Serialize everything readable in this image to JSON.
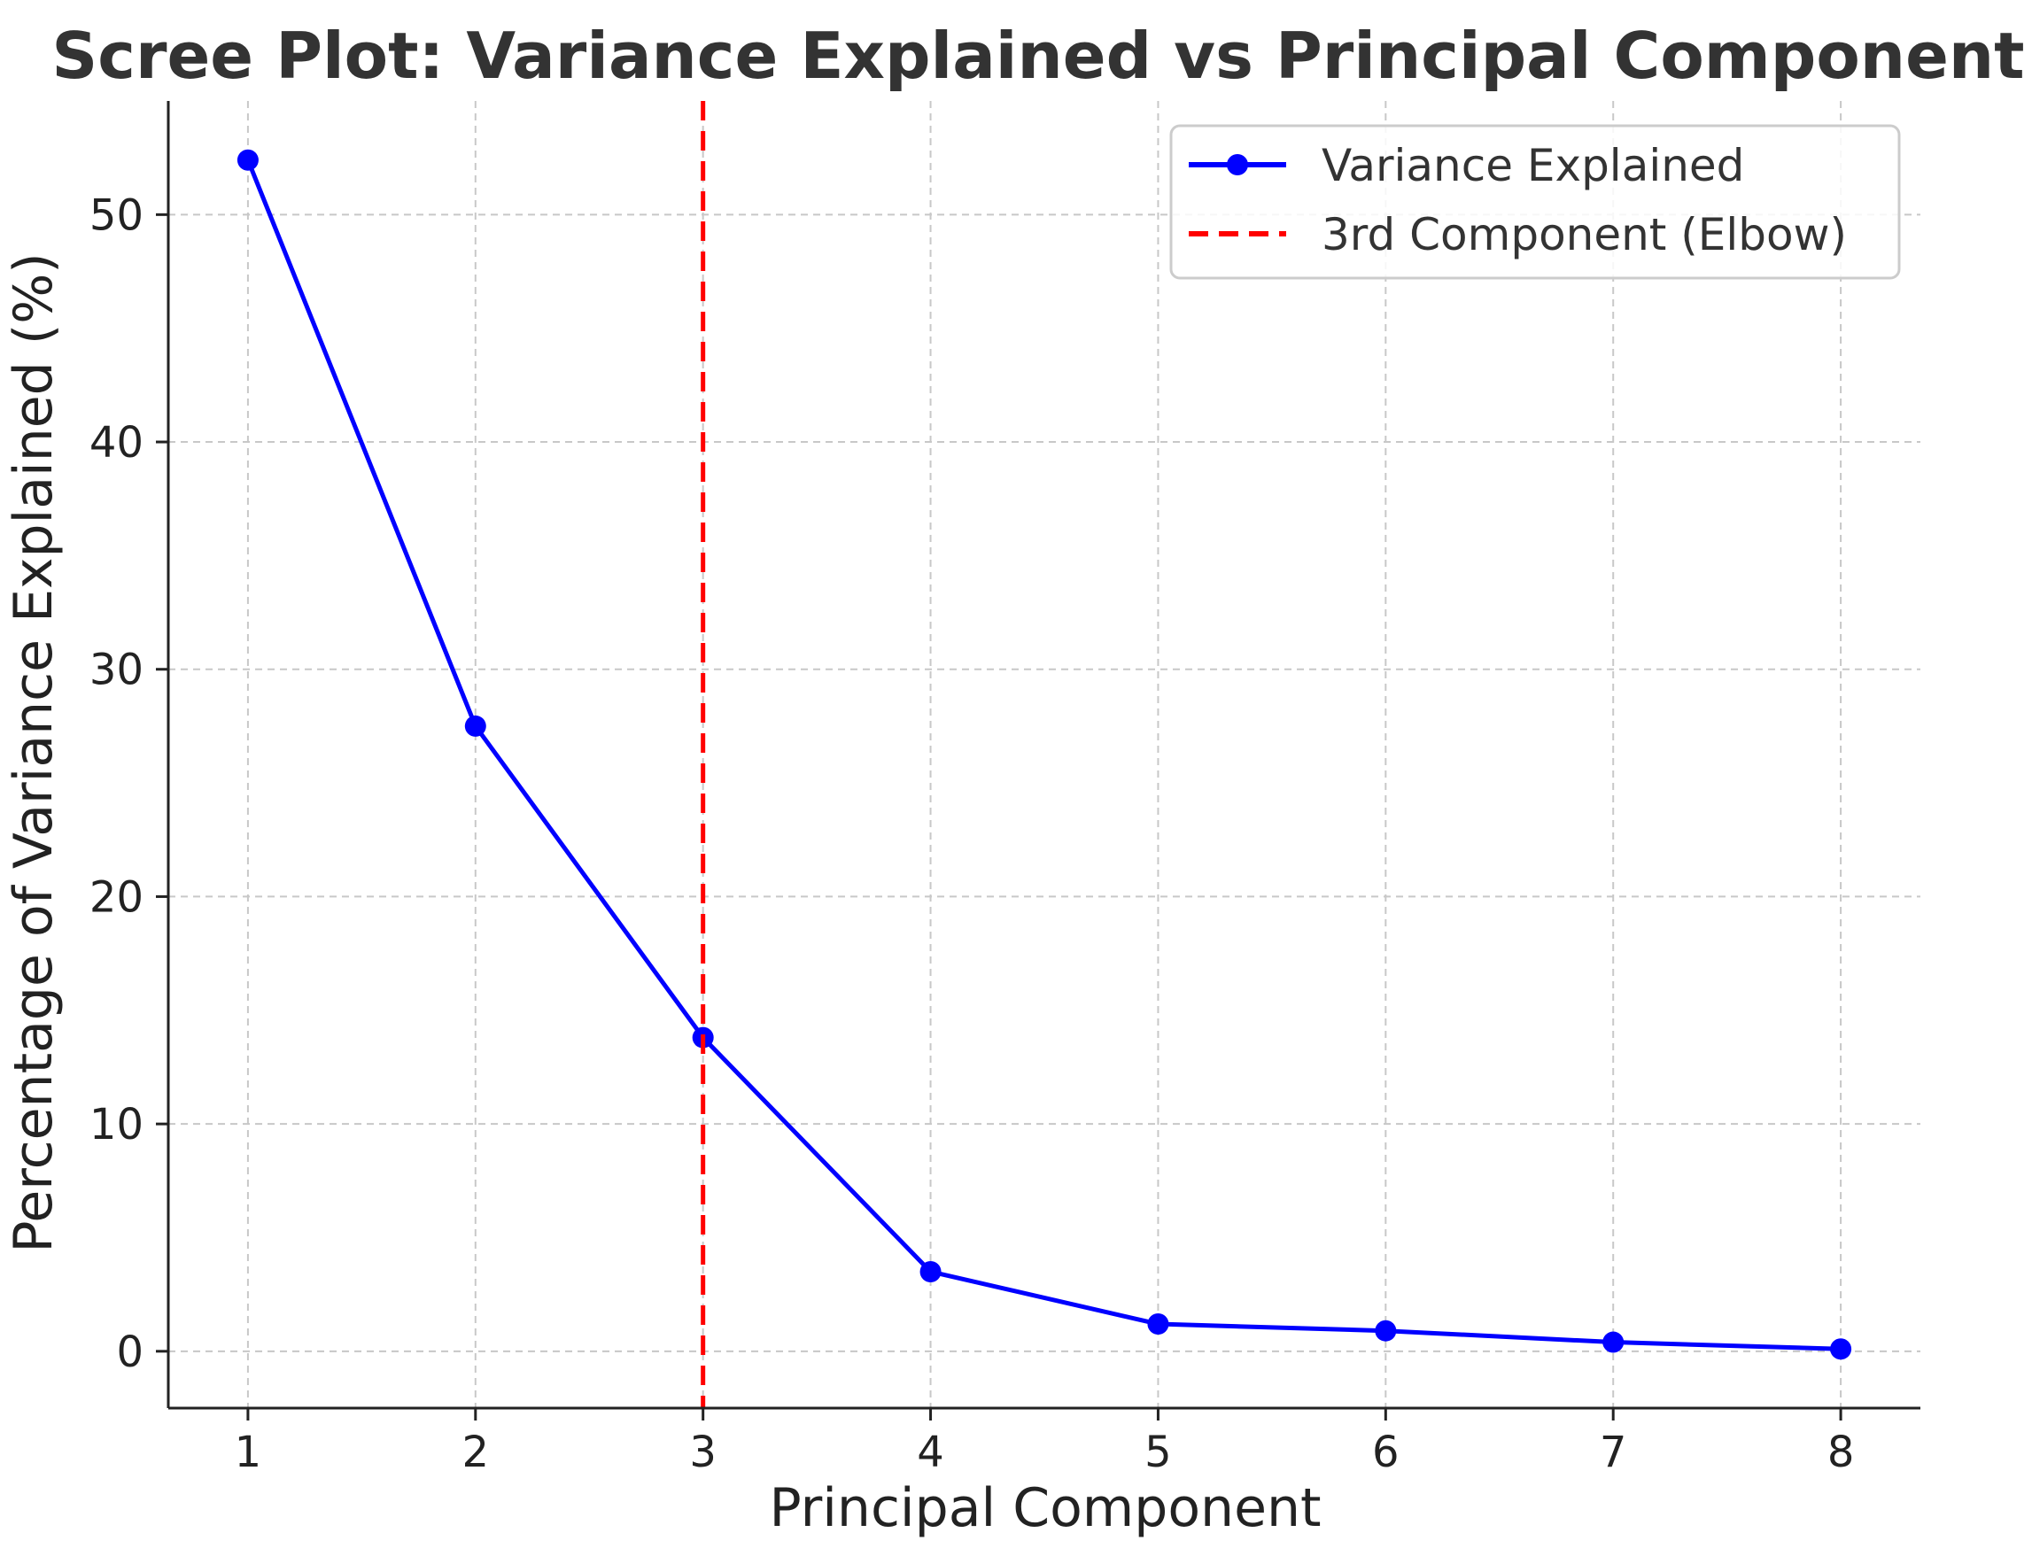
{
  "chart_data": {
    "type": "line",
    "title": "Scree Plot: Variance Explained vs Principal Component",
    "xlabel": "Principal Component",
    "ylabel": "Percentage of Variance Explained (%)",
    "x": [
      1,
      2,
      3,
      4,
      5,
      6,
      7,
      8
    ],
    "series": [
      {
        "name": "Variance Explained",
        "values": [
          52.4,
          27.5,
          13.8,
          3.5,
          1.2,
          0.9,
          0.4,
          0.1
        ],
        "color": "#0000ff",
        "marker": "circle"
      }
    ],
    "reference_line": {
      "name": "3rd Component (Elbow)",
      "x": 3,
      "color": "#ff0000",
      "style": "dashed"
    },
    "xticks": [
      1,
      2,
      3,
      4,
      5,
      6,
      7,
      8
    ],
    "yticks": [
      0,
      10,
      20,
      30,
      40,
      50
    ],
    "xlim": [
      0.65,
      8.35
    ],
    "ylim": [
      -2.5,
      55
    ],
    "grid": true,
    "legend_position": "top-right"
  }
}
